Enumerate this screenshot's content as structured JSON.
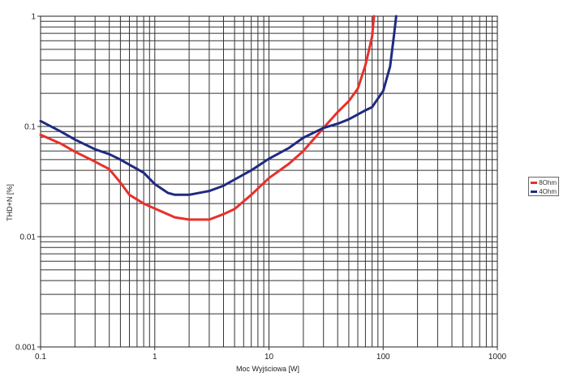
{
  "chart_data": {
    "type": "line",
    "title": "",
    "xlabel": "Moc Wyjściowa [W]",
    "ylabel": "THD+N [%]",
    "xscale": "log",
    "yscale": "log",
    "xlim": [
      0.1,
      1000
    ],
    "ylim": [
      0.001,
      1
    ],
    "x_ticks": [
      "0.1",
      "1",
      "10",
      "100",
      "1000"
    ],
    "y_ticks": [
      "0.001",
      "0.01",
      "0.1",
      "1"
    ],
    "grid": true,
    "legend_position": "right",
    "series": [
      {
        "name": "8Ohm",
        "color": "#e8302a",
        "x": [
          0.1,
          0.15,
          0.2,
          0.3,
          0.4,
          0.5,
          0.6,
          0.8,
          1,
          1.5,
          2,
          3,
          4,
          5,
          7,
          10,
          15,
          20,
          30,
          40,
          50,
          60,
          70,
          80,
          83
        ],
        "y": [
          0.084,
          0.07,
          0.059,
          0.048,
          0.041,
          0.031,
          0.024,
          0.02,
          0.018,
          0.015,
          0.0143,
          0.0143,
          0.016,
          0.0178,
          0.024,
          0.034,
          0.046,
          0.06,
          0.097,
          0.135,
          0.17,
          0.22,
          0.36,
          0.65,
          1.0
        ]
      },
      {
        "name": "4Ohm",
        "color": "#1f2a80",
        "x": [
          0.1,
          0.15,
          0.2,
          0.3,
          0.4,
          0.5,
          0.6,
          0.8,
          1,
          1.3,
          1.5,
          2,
          3,
          4,
          5,
          7,
          10,
          15,
          20,
          30,
          40,
          50,
          70,
          80,
          100,
          115,
          125,
          130
        ],
        "y": [
          0.112,
          0.09,
          0.076,
          0.062,
          0.056,
          0.05,
          0.045,
          0.038,
          0.03,
          0.025,
          0.024,
          0.024,
          0.026,
          0.029,
          0.033,
          0.04,
          0.051,
          0.064,
          0.079,
          0.097,
          0.106,
          0.116,
          0.14,
          0.15,
          0.21,
          0.35,
          0.7,
          1.0
        ]
      }
    ]
  }
}
